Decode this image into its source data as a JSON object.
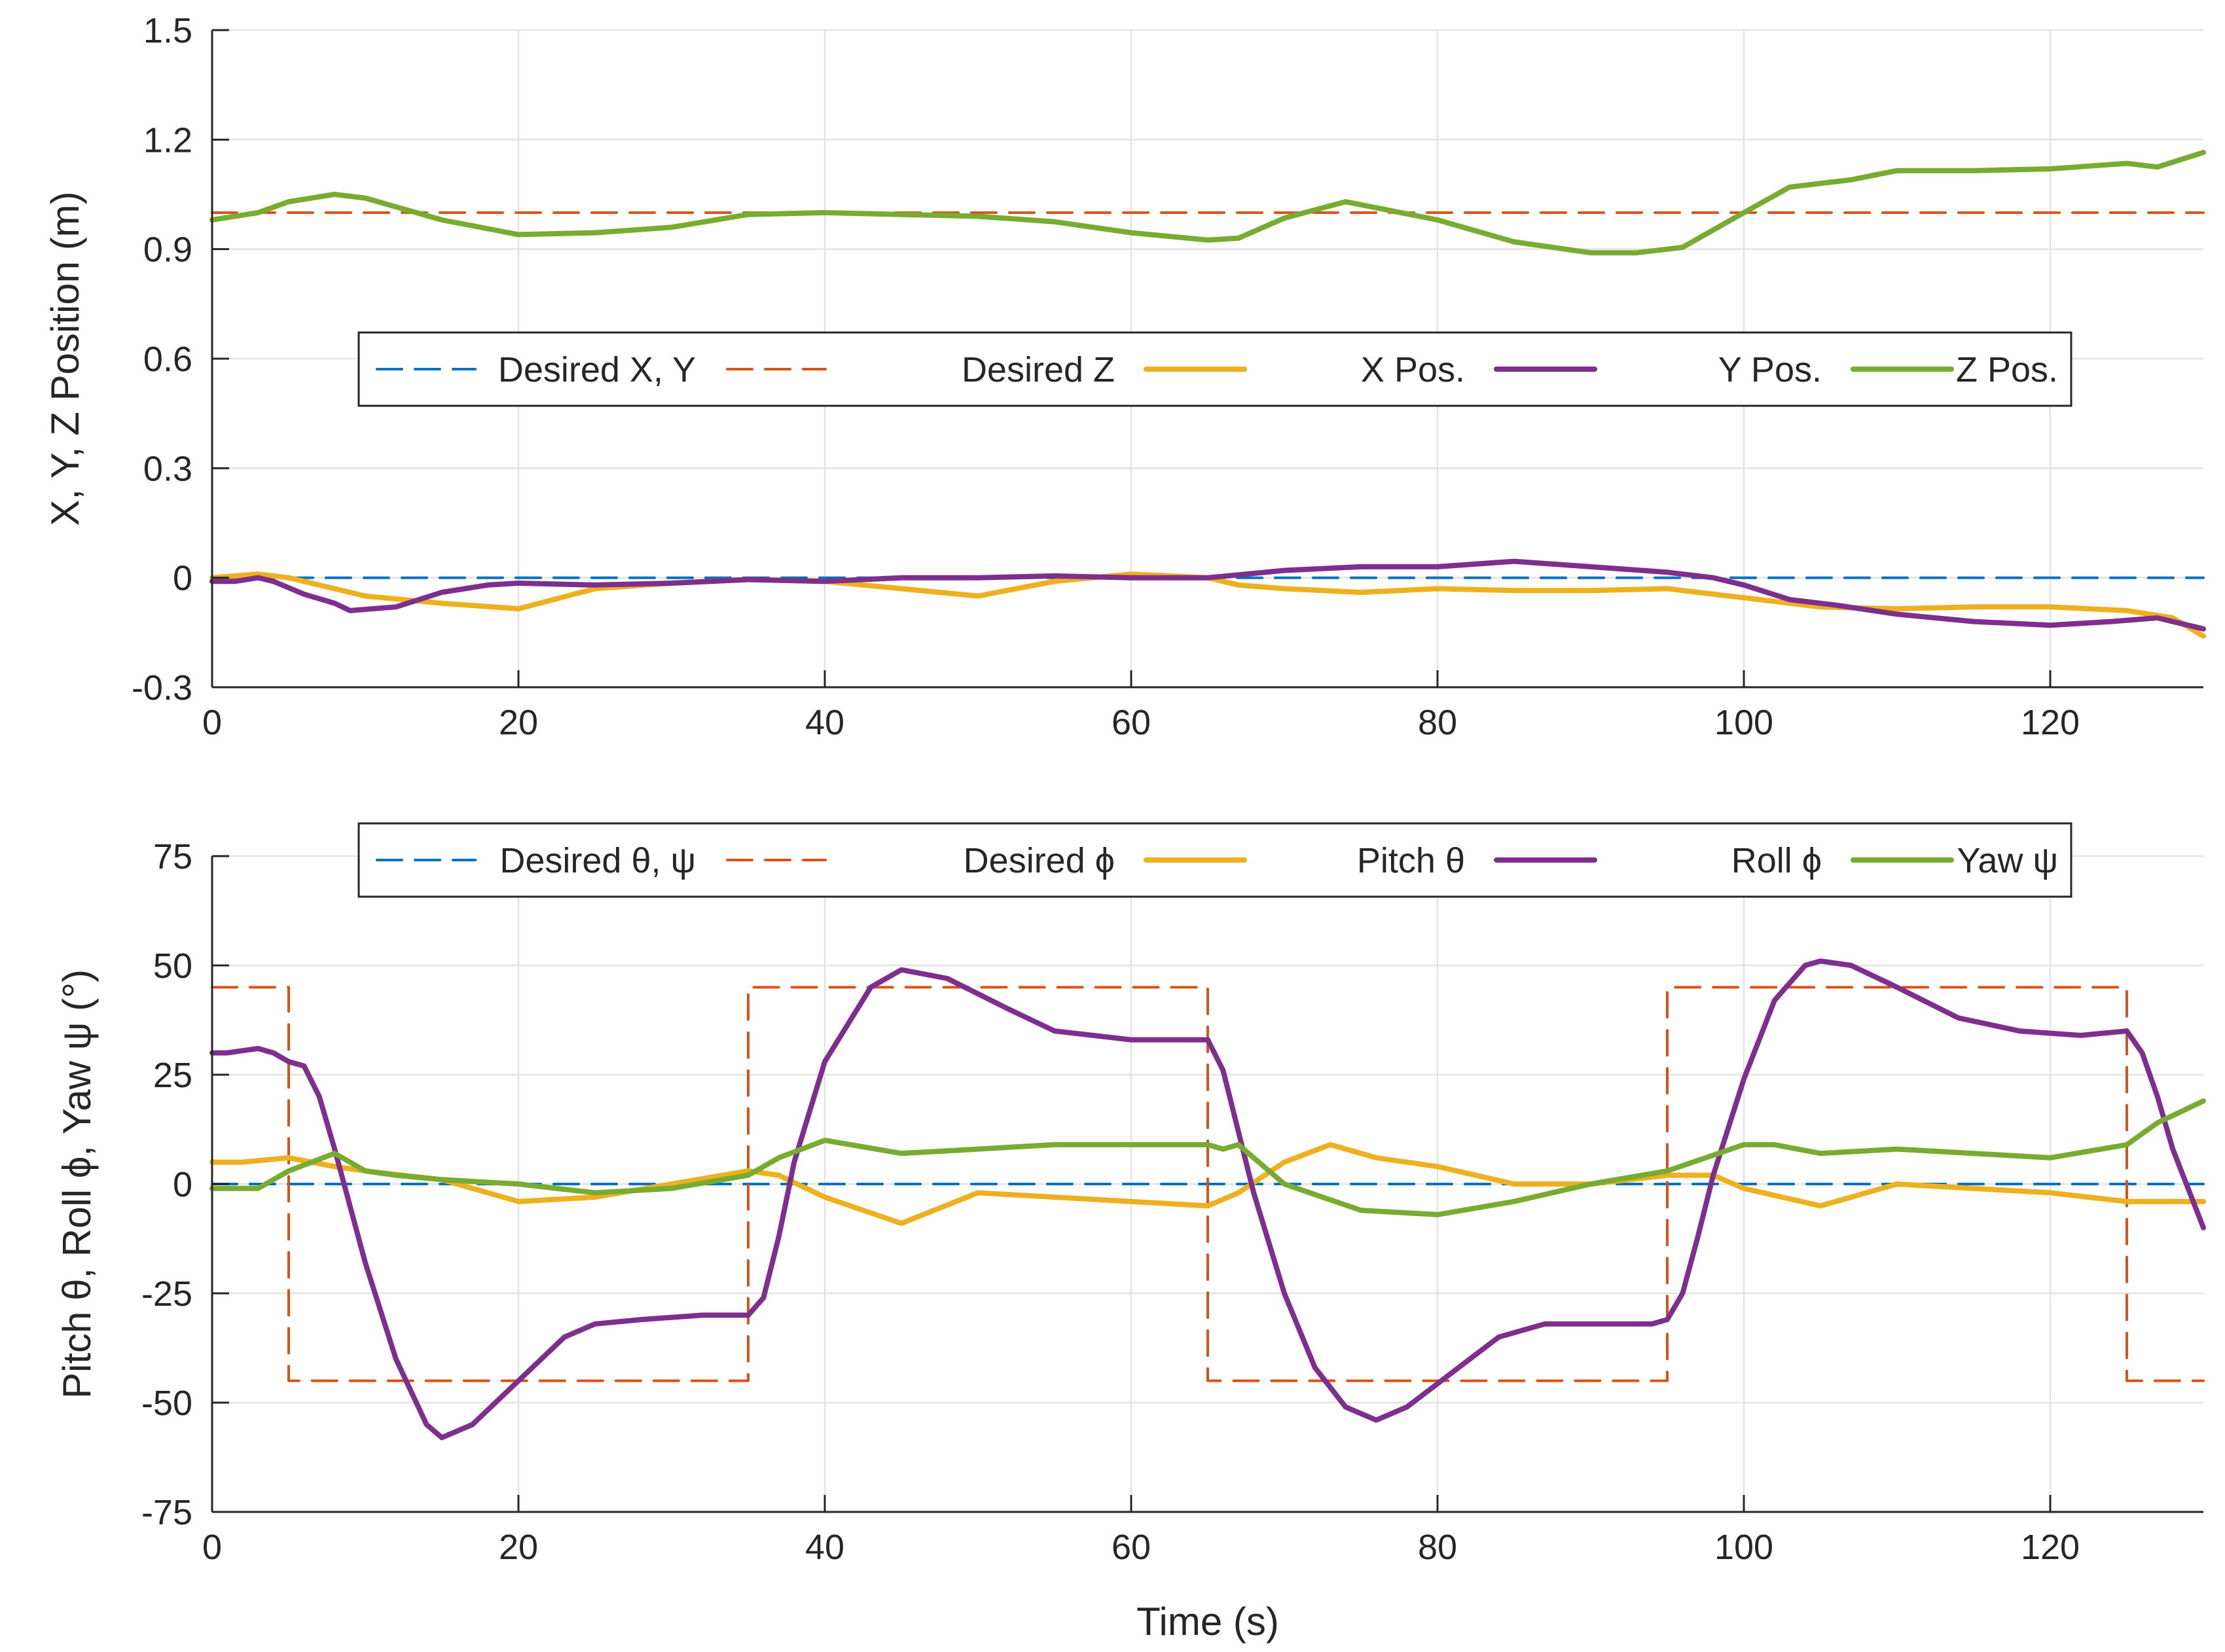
{
  "chart_data": [
    {
      "type": "line",
      "title": "",
      "xlabel": "",
      "ylabel": "X, Y, Z Position (m)",
      "xlim": [
        0,
        130
      ],
      "ylim": [
        -0.3,
        1.5
      ],
      "xticks": [
        0,
        20,
        40,
        60,
        80,
        100,
        120
      ],
      "yticks": [
        -0.3,
        0,
        0.3,
        0.6,
        0.9,
        1.2,
        1.5
      ],
      "xtick_labels": [
        "0",
        "20",
        "40",
        "60",
        "80",
        "100",
        "120"
      ],
      "ytick_labels": [
        "-0.3",
        "0",
        "0.3",
        "0.6",
        "0.9",
        "1.2",
        "1.5"
      ],
      "grid": true,
      "legend_position": "middle",
      "series": [
        {
          "name": "Desired X, Y",
          "color": "#0072BD",
          "style": "dashed",
          "x": [
            0,
            130
          ],
          "y": [
            0,
            0
          ]
        },
        {
          "name": "Desired Z",
          "color": "#D95319",
          "style": "dashed",
          "x": [
            0,
            130
          ],
          "y": [
            1.0,
            1.0
          ]
        },
        {
          "name": "X Pos.",
          "color": "#EDB120",
          "style": "solid",
          "x": [
            0,
            3,
            5,
            8,
            10,
            15,
            20,
            25,
            30,
            35,
            40,
            45,
            50,
            55,
            60,
            65,
            67,
            70,
            75,
            80,
            85,
            90,
            95,
            100,
            105,
            110,
            115,
            120,
            125,
            128,
            130
          ],
          "y": [
            0.0,
            0.01,
            0.0,
            -0.03,
            -0.05,
            -0.07,
            -0.085,
            -0.03,
            -0.015,
            -0.005,
            -0.01,
            -0.03,
            -0.05,
            -0.01,
            0.01,
            0.0,
            -0.02,
            -0.03,
            -0.04,
            -0.03,
            -0.035,
            -0.035,
            -0.03,
            -0.055,
            -0.08,
            -0.085,
            -0.08,
            -0.08,
            -0.09,
            -0.11,
            -0.16
          ]
        },
        {
          "name": "Y Pos.",
          "color": "#7E2F8E",
          "style": "solid",
          "x": [
            0,
            1.5,
            3,
            4,
            6,
            8,
            9,
            12,
            15,
            18,
            20,
            25,
            30,
            35,
            40,
            45,
            50,
            55,
            60,
            65,
            70,
            75,
            80,
            85,
            90,
            95,
            98,
            100,
            103,
            106,
            110,
            115,
            120,
            124,
            127,
            130
          ],
          "y": [
            -0.01,
            -0.01,
            0.0,
            -0.01,
            -0.045,
            -0.07,
            -0.09,
            -0.08,
            -0.04,
            -0.02,
            -0.015,
            -0.02,
            -0.015,
            -0.005,
            -0.01,
            0.0,
            0.0,
            0.005,
            0.0,
            0.0,
            0.02,
            0.03,
            0.03,
            0.045,
            0.03,
            0.015,
            0.0,
            -0.02,
            -0.06,
            -0.075,
            -0.1,
            -0.12,
            -0.13,
            -0.12,
            -0.11,
            -0.14
          ]
        },
        {
          "name": "Z Pos.",
          "color": "#77AC30",
          "style": "solid",
          "x": [
            0,
            3,
            5,
            8,
            10,
            15,
            20,
            25,
            30,
            35,
            40,
            45,
            50,
            55,
            60,
            65,
            67,
            70,
            74,
            80,
            85,
            90,
            93,
            96,
            100,
            103,
            107,
            110,
            115,
            120,
            125,
            127,
            130
          ],
          "y": [
            0.98,
            1.0,
            1.03,
            1.05,
            1.04,
            0.98,
            0.94,
            0.945,
            0.96,
            0.995,
            1.0,
            0.995,
            0.99,
            0.975,
            0.945,
            0.925,
            0.93,
            0.985,
            1.03,
            0.98,
            0.92,
            0.89,
            0.89,
            0.905,
            1.0,
            1.07,
            1.09,
            1.115,
            1.115,
            1.12,
            1.135,
            1.125,
            1.165
          ]
        }
      ]
    },
    {
      "type": "line",
      "title": "",
      "xlabel": "Time (s)",
      "ylabel": "Pitch θ, Roll ϕ, Yaw ψ (°)",
      "xlim": [
        0,
        130
      ],
      "ylim": [
        -75,
        75
      ],
      "xticks": [
        0,
        20,
        40,
        60,
        80,
        100,
        120
      ],
      "yticks": [
        -75,
        -50,
        -25,
        0,
        25,
        50,
        75
      ],
      "xtick_labels": [
        "0",
        "20",
        "40",
        "60",
        "80",
        "100",
        "120"
      ],
      "ytick_labels": [
        "-75",
        "-50",
        "-25",
        "0",
        "25",
        "50",
        "75"
      ],
      "grid": true,
      "legend_position": "top",
      "series": [
        {
          "name": "Desired θ, ψ",
          "color": "#0072BD",
          "style": "dashed",
          "x": [
            0,
            130
          ],
          "y": [
            0,
            0
          ]
        },
        {
          "name": "Desired ϕ",
          "color": "#D95319",
          "style": "dashed",
          "x": [
            0,
            5,
            5,
            35,
            35,
            65,
            65,
            95,
            95,
            125,
            125,
            130
          ],
          "y": [
            45,
            45,
            -45,
            -45,
            45,
            45,
            -45,
            -45,
            45,
            45,
            -45,
            -45
          ]
        },
        {
          "name": "Pitch θ",
          "color": "#EDB120",
          "style": "solid",
          "x": [
            0,
            2,
            5,
            8,
            10,
            15,
            20,
            25,
            30,
            35,
            37,
            40,
            45,
            50,
            55,
            60,
            65,
            67,
            70,
            73,
            76,
            80,
            85,
            90,
            95,
            98,
            100,
            105,
            110,
            115,
            120,
            125,
            130
          ],
          "y": [
            5,
            5,
            6,
            4,
            3,
            1,
            -4,
            -3,
            0,
            3,
            2,
            -3,
            -9,
            -2,
            -3,
            -4,
            -5,
            -2,
            5,
            9,
            6,
            4,
            0,
            0,
            2,
            2,
            -1,
            -5,
            0,
            -1,
            -2,
            -4,
            -4
          ]
        },
        {
          "name": "Roll ϕ",
          "color": "#7E2F8E",
          "style": "solid",
          "x": [
            0,
            1,
            3,
            4,
            5,
            6,
            7,
            8,
            10,
            12,
            14,
            15,
            17,
            20,
            23,
            25,
            28,
            32,
            35,
            36,
            37,
            38,
            40,
            43,
            45,
            48,
            52,
            55,
            60,
            64,
            65,
            66,
            67,
            68,
            70,
            72,
            74,
            76,
            78,
            81,
            84,
            87,
            90,
            94,
            95,
            96,
            97,
            98,
            100,
            102,
            104,
            105,
            107,
            110,
            114,
            118,
            122,
            125,
            126,
            127,
            128,
            130
          ],
          "y": [
            30,
            30,
            31,
            30,
            28,
            27,
            20,
            8,
            -18,
            -40,
            -55,
            -58,
            -55,
            -45,
            -35,
            -32,
            -31,
            -30,
            -30,
            -26,
            -12,
            5,
            28,
            45,
            49,
            47,
            40,
            35,
            33,
            33,
            33,
            26,
            12,
            -2,
            -25,
            -42,
            -51,
            -54,
            -51,
            -43,
            -35,
            -32,
            -32,
            -32,
            -31,
            -25,
            -12,
            2,
            24,
            42,
            50,
            51,
            50,
            45,
            38,
            35,
            34,
            35,
            30,
            20,
            8,
            -10
          ]
        },
        {
          "name": "Yaw ψ",
          "color": "#77AC30",
          "style": "solid",
          "x": [
            0,
            3,
            5,
            8,
            10,
            12,
            15,
            20,
            25,
            30,
            35,
            37,
            40,
            45,
            50,
            55,
            60,
            65,
            66,
            67,
            68,
            70,
            75,
            80,
            85,
            90,
            95,
            100,
            102,
            105,
            110,
            115,
            120,
            125,
            127,
            130
          ],
          "y": [
            -1,
            -1,
            3,
            7,
            3,
            2,
            1,
            0,
            -2,
            -1,
            2,
            6,
            10,
            7,
            8,
            9,
            9,
            9,
            8,
            9,
            6,
            0,
            -6,
            -7,
            -4,
            0,
            3,
            9,
            9,
            7,
            8,
            7,
            6,
            9,
            14,
            19
          ]
        }
      ]
    }
  ]
}
